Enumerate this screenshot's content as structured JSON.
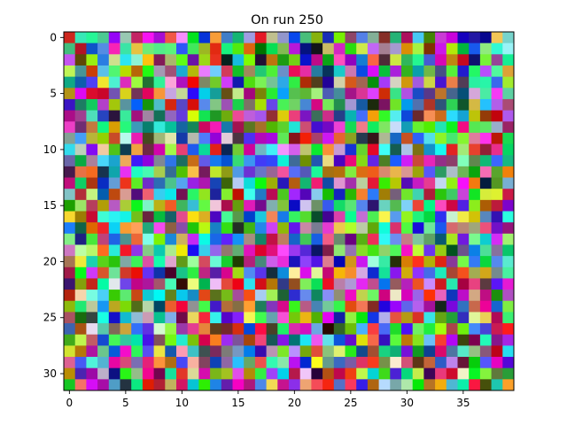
{
  "chart_data": {
    "type": "heatmap",
    "title": "On run 250",
    "xlabel": "",
    "ylabel": "",
    "columns": 40,
    "rows": 32,
    "x_ticks": [
      0,
      5,
      10,
      15,
      20,
      25,
      30,
      35
    ],
    "y_ticks": [
      0,
      5,
      10,
      15,
      20,
      25,
      30
    ],
    "xlim": [
      -0.5,
      39.5
    ],
    "ylim": [
      31.5,
      -0.5
    ],
    "y_axis_inverted": true,
    "grid": false,
    "legend": "none",
    "cell_colors": "random RGB per cell (40x32 image, individual values not recoverable)"
  }
}
